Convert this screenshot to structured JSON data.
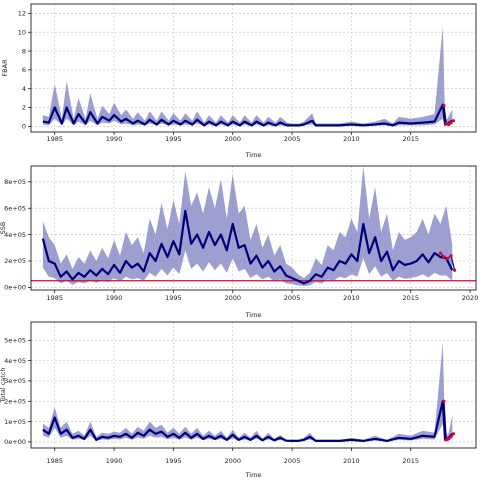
{
  "colors": {
    "band": "#7c7fc0",
    "line": "#00007a",
    "recent": "#e8002a",
    "reference": "#e8002a",
    "grid": "#c0c0c0",
    "frame": "#000000"
  },
  "chart_data": [
    {
      "type": "area",
      "ylabel": "FBAR",
      "xlabel": "Time",
      "xlim": [
        1983.0,
        2020.5
      ],
      "ylim": [
        -0.6,
        13.0
      ],
      "xticks": [
        1985,
        1990,
        1995,
        2000,
        2005,
        2010,
        2015
      ],
      "xtick_labels": [
        "1985",
        "1990",
        "1995",
        "2000",
        "2005",
        "2010",
        "2015"
      ],
      "yticks": [
        0,
        2,
        4,
        6,
        8,
        10,
        12
      ],
      "ytick_labels": [
        "0",
        "2",
        "4",
        "6",
        "8",
        "10",
        "12"
      ],
      "grid": true,
      "x": [
        1984,
        1984.5,
        1985,
        1985.6,
        1986,
        1986.6,
        1987,
        1987.6,
        1988,
        1988.6,
        1989,
        1989.6,
        1990,
        1990.6,
        1991,
        1991.6,
        1992,
        1992.6,
        1993,
        1993.6,
        1994,
        1994.6,
        1995,
        1995.6,
        1996,
        1996.6,
        1997,
        1997.6,
        1998,
        1998.6,
        1999,
        1999.6,
        2000,
        2000.6,
        2001,
        2001.6,
        2002,
        2002.6,
        2003,
        2003.6,
        2004,
        2004.6,
        2005,
        2005.6,
        2006,
        2006.7,
        2007,
        2008,
        2009,
        2010,
        2011,
        2012,
        2012.8,
        2013.5,
        2014,
        2015,
        2016,
        2017,
        2017.7,
        2017.9,
        2018.1,
        2018.5
      ],
      "values": [
        0.5,
        0.4,
        2.0,
        0.3,
        2.0,
        0.3,
        1.3,
        0.3,
        1.5,
        0.3,
        1.0,
        0.6,
        1.2,
        0.5,
        0.8,
        0.3,
        0.6,
        0.2,
        0.7,
        0.2,
        0.7,
        0.2,
        0.6,
        0.2,
        0.6,
        0.2,
        0.7,
        0.1,
        0.5,
        0.1,
        0.5,
        0.1,
        0.5,
        0.1,
        0.5,
        0.1,
        0.5,
        0.1,
        0.4,
        0.1,
        0.4,
        0.1,
        0.1,
        0.1,
        0.2,
        0.6,
        0.1,
        0.1,
        0.1,
        0.2,
        0.1,
        0.2,
        0.3,
        0.1,
        0.4,
        0.3,
        0.4,
        0.5,
        2.3,
        0.2,
        0.3,
        0.6
      ],
      "lower": [
        0.2,
        0.1,
        0.8,
        0.1,
        0.8,
        0.1,
        0.5,
        0.1,
        0.6,
        0.1,
        0.4,
        0.3,
        0.6,
        0.2,
        0.3,
        0.1,
        0.2,
        0.1,
        0.3,
        0.1,
        0.3,
        0.1,
        0.2,
        0.1,
        0.2,
        0.1,
        0.3,
        0.0,
        0.2,
        0.0,
        0.2,
        0.0,
        0.2,
        0.0,
        0.2,
        0.0,
        0.2,
        0.0,
        0.1,
        0.0,
        0.1,
        0.0,
        0.0,
        0.0,
        0.1,
        0.2,
        0.0,
        0.0,
        0.0,
        0.1,
        0.0,
        0.1,
        0.1,
        0.0,
        0.1,
        0.1,
        0.1,
        0.2,
        0.8,
        0.0,
        0.1,
        0.2
      ],
      "upper": [
        1.2,
        1.0,
        4.5,
        0.8,
        4.8,
        0.8,
        3.0,
        0.8,
        3.5,
        0.8,
        2.2,
        1.3,
        2.5,
        1.2,
        1.8,
        0.8,
        1.5,
        0.6,
        1.6,
        0.6,
        1.6,
        0.6,
        1.4,
        0.6,
        1.4,
        0.6,
        1.6,
        0.4,
        1.2,
        0.4,
        1.2,
        0.4,
        1.2,
        0.4,
        1.2,
        0.4,
        1.2,
        0.4,
        1.0,
        0.4,
        1.0,
        0.4,
        0.3,
        0.3,
        0.5,
        1.4,
        0.3,
        0.3,
        0.3,
        0.5,
        0.3,
        0.5,
        0.8,
        0.3,
        1.0,
        0.8,
        1.0,
        1.3,
        10.6,
        0.6,
        0.8,
        1.8
      ],
      "recent_x": [
        2017.8,
        2018.0,
        2018.2,
        2018.4,
        2018.6
      ],
      "recent_values": [
        2.2,
        0.3,
        0.2,
        0.4,
        0.6
      ]
    },
    {
      "type": "area",
      "ylabel": "SSB",
      "xlabel": "Time",
      "xlim": [
        1983.0,
        2020.5
      ],
      "ylim": [
        -20000,
        920000
      ],
      "xticks": [
        1985,
        1990,
        1995,
        2000,
        2005,
        2010,
        2015,
        2020
      ],
      "xtick_labels": [
        "1985",
        "1990",
        "1995",
        "2000",
        "2005",
        "2010",
        "2015",
        "2020"
      ],
      "yticks": [
        0,
        200000,
        400000,
        600000,
        800000
      ],
      "ytick_labels": [
        "0e+00",
        "2e+05",
        "4e+05",
        "6e+05",
        "8e+05"
      ],
      "grid": true,
      "reference_line": 50000,
      "x": [
        1984,
        1984.5,
        1985,
        1985.5,
        1986,
        1986.5,
        1987,
        1987.5,
        1988,
        1988.5,
        1989,
        1989.5,
        1990,
        1990.5,
        1991,
        1991.5,
        1992,
        1992.5,
        1993,
        1993.5,
        1994,
        1994.5,
        1995,
        1995.5,
        1996,
        1996.5,
        1997,
        1997.5,
        1998,
        1998.5,
        1999,
        1999.5,
        2000,
        2000.5,
        2001,
        2001.5,
        2002,
        2002.5,
        2003,
        2003.5,
        2004,
        2004.5,
        2005,
        2005.5,
        2006,
        2006.5,
        2007,
        2007.5,
        2008,
        2008.5,
        2009,
        2009.5,
        2010,
        2010.5,
        2011,
        2011.5,
        2012,
        2012.5,
        2013,
        2013.5,
        2014,
        2014.5,
        2015,
        2015.5,
        2016,
        2016.5,
        2017,
        2017.5,
        2018,
        2018.5
      ],
      "values": [
        370000,
        200000,
        180000,
        80000,
        120000,
        60000,
        110000,
        80000,
        130000,
        90000,
        140000,
        100000,
        170000,
        110000,
        200000,
        150000,
        180000,
        120000,
        260000,
        200000,
        330000,
        230000,
        350000,
        250000,
        580000,
        330000,
        400000,
        300000,
        420000,
        320000,
        400000,
        280000,
        480000,
        300000,
        320000,
        180000,
        240000,
        150000,
        200000,
        120000,
        160000,
        90000,
        70000,
        50000,
        30000,
        50000,
        100000,
        80000,
        150000,
        130000,
        200000,
        180000,
        250000,
        200000,
        480000,
        260000,
        380000,
        200000,
        270000,
        130000,
        200000,
        170000,
        180000,
        200000,
        250000,
        190000,
        260000,
        230000,
        220000,
        130000
      ],
      "lower": [
        150000,
        80000,
        70000,
        30000,
        50000,
        20000,
        40000,
        30000,
        50000,
        35000,
        55000,
        40000,
        70000,
        45000,
        80000,
        60000,
        70000,
        50000,
        110000,
        80000,
        140000,
        90000,
        150000,
        100000,
        280000,
        140000,
        180000,
        120000,
        190000,
        130000,
        180000,
        110000,
        220000,
        120000,
        140000,
        70000,
        100000,
        60000,
        80000,
        45000,
        60000,
        30000,
        25000,
        15000,
        10000,
        15000,
        40000,
        30000,
        60000,
        50000,
        80000,
        70000,
        100000,
        80000,
        220000,
        100000,
        160000,
        80000,
        110000,
        50000,
        80000,
        65000,
        70000,
        80000,
        100000,
        75000,
        110000,
        90000,
        90000,
        50000
      ],
      "upper": [
        500000,
        380000,
        320000,
        180000,
        250000,
        140000,
        230000,
        180000,
        280000,
        200000,
        300000,
        220000,
        360000,
        240000,
        420000,
        320000,
        380000,
        260000,
        520000,
        400000,
        640000,
        440000,
        660000,
        480000,
        880000,
        620000,
        720000,
        560000,
        760000,
        600000,
        820000,
        520000,
        860000,
        560000,
        620000,
        360000,
        480000,
        300000,
        400000,
        240000,
        320000,
        180000,
        150000,
        100000,
        70000,
        110000,
        220000,
        170000,
        320000,
        280000,
        420000,
        380000,
        520000,
        420000,
        920000,
        520000,
        760000,
        420000,
        560000,
        280000,
        420000,
        360000,
        380000,
        420000,
        520000,
        400000,
        560000,
        480000,
        620000,
        320000
      ],
      "recent_x": [
        2017.5,
        2017.8,
        2018.1,
        2018.4,
        2018.7
      ],
      "recent_values": [
        260000,
        230000,
        220000,
        240000,
        130000
      ]
    },
    {
      "type": "area",
      "ylabel": "Total catch",
      "xlabel": "Time",
      "xlim": [
        1983.0,
        2020.5
      ],
      "ylim": [
        -30000,
        590000
      ],
      "xticks": [
        1985,
        1990,
        1995,
        2000,
        2005,
        2010,
        2015
      ],
      "xtick_labels": [
        "1985",
        "1990",
        "1995",
        "2000",
        "2005",
        "2010",
        "2015"
      ],
      "yticks": [
        0,
        100000,
        200000,
        300000,
        400000,
        500000
      ],
      "ytick_labels": [
        "0e+00",
        "1e+05",
        "2e+05",
        "3e+05",
        "4e+05",
        "5e+05"
      ],
      "grid": true,
      "x": [
        1984,
        1984.5,
        1985,
        1985.5,
        1986,
        1986.5,
        1987,
        1987.5,
        1988,
        1988.5,
        1989,
        1989.5,
        1990,
        1990.5,
        1991,
        1991.5,
        1992,
        1992.5,
        1993,
        1993.5,
        1994,
        1994.5,
        1995,
        1995.5,
        1996,
        1996.5,
        1997,
        1997.5,
        1998,
        1998.5,
        1999,
        1999.5,
        2000,
        2000.5,
        2001,
        2001.5,
        2002,
        2002.5,
        2003,
        2003.5,
        2004,
        2004.5,
        2005,
        2005.5,
        2006,
        2006.5,
        2007,
        2008,
        2009,
        2010,
        2011,
        2012,
        2013,
        2014,
        2015,
        2016,
        2017,
        2017.7,
        2017.9,
        2018.2,
        2018.5
      ],
      "values": [
        60000,
        40000,
        120000,
        40000,
        60000,
        20000,
        30000,
        15000,
        60000,
        10000,
        25000,
        20000,
        30000,
        25000,
        40000,
        20000,
        45000,
        30000,
        60000,
        40000,
        50000,
        25000,
        40000,
        20000,
        45000,
        20000,
        40000,
        15000,
        30000,
        15000,
        30000,
        10000,
        35000,
        10000,
        25000,
        10000,
        30000,
        8000,
        25000,
        8000,
        20000,
        6000,
        5000,
        5000,
        10000,
        25000,
        5000,
        5000,
        5000,
        10000,
        5000,
        15000,
        5000,
        20000,
        15000,
        30000,
        25000,
        200000,
        10000,
        20000,
        40000
      ],
      "lower": [
        30000,
        20000,
        70000,
        20000,
        30000,
        10000,
        15000,
        8000,
        30000,
        5000,
        12000,
        10000,
        15000,
        12000,
        20000,
        10000,
        22000,
        15000,
        30000,
        20000,
        25000,
        12000,
        20000,
        10000,
        22000,
        10000,
        20000,
        8000,
        15000,
        8000,
        15000,
        5000,
        17000,
        5000,
        12000,
        5000,
        15000,
        4000,
        12000,
        4000,
        10000,
        3000,
        2000,
        2000,
        5000,
        12000,
        2000,
        2000,
        2000,
        5000,
        2000,
        7000,
        2000,
        10000,
        7000,
        15000,
        12000,
        90000,
        5000,
        10000,
        20000
      ],
      "upper": [
        90000,
        70000,
        170000,
        70000,
        100000,
        40000,
        55000,
        30000,
        100000,
        25000,
        45000,
        40000,
        50000,
        45000,
        70000,
        40000,
        75000,
        55000,
        100000,
        70000,
        85000,
        45000,
        70000,
        40000,
        75000,
        40000,
        70000,
        30000,
        55000,
        30000,
        55000,
        20000,
        60000,
        20000,
        45000,
        20000,
        55000,
        15000,
        45000,
        15000,
        35000,
        12000,
        10000,
        10000,
        20000,
        45000,
        10000,
        10000,
        10000,
        20000,
        10000,
        30000,
        10000,
        40000,
        30000,
        55000,
        45000,
        490000,
        25000,
        45000,
        130000
      ],
      "recent_x": [
        2017.8,
        2018.0,
        2018.2,
        2018.4,
        2018.6
      ],
      "recent_values": [
        200000,
        10000,
        15000,
        25000,
        40000
      ]
    }
  ]
}
